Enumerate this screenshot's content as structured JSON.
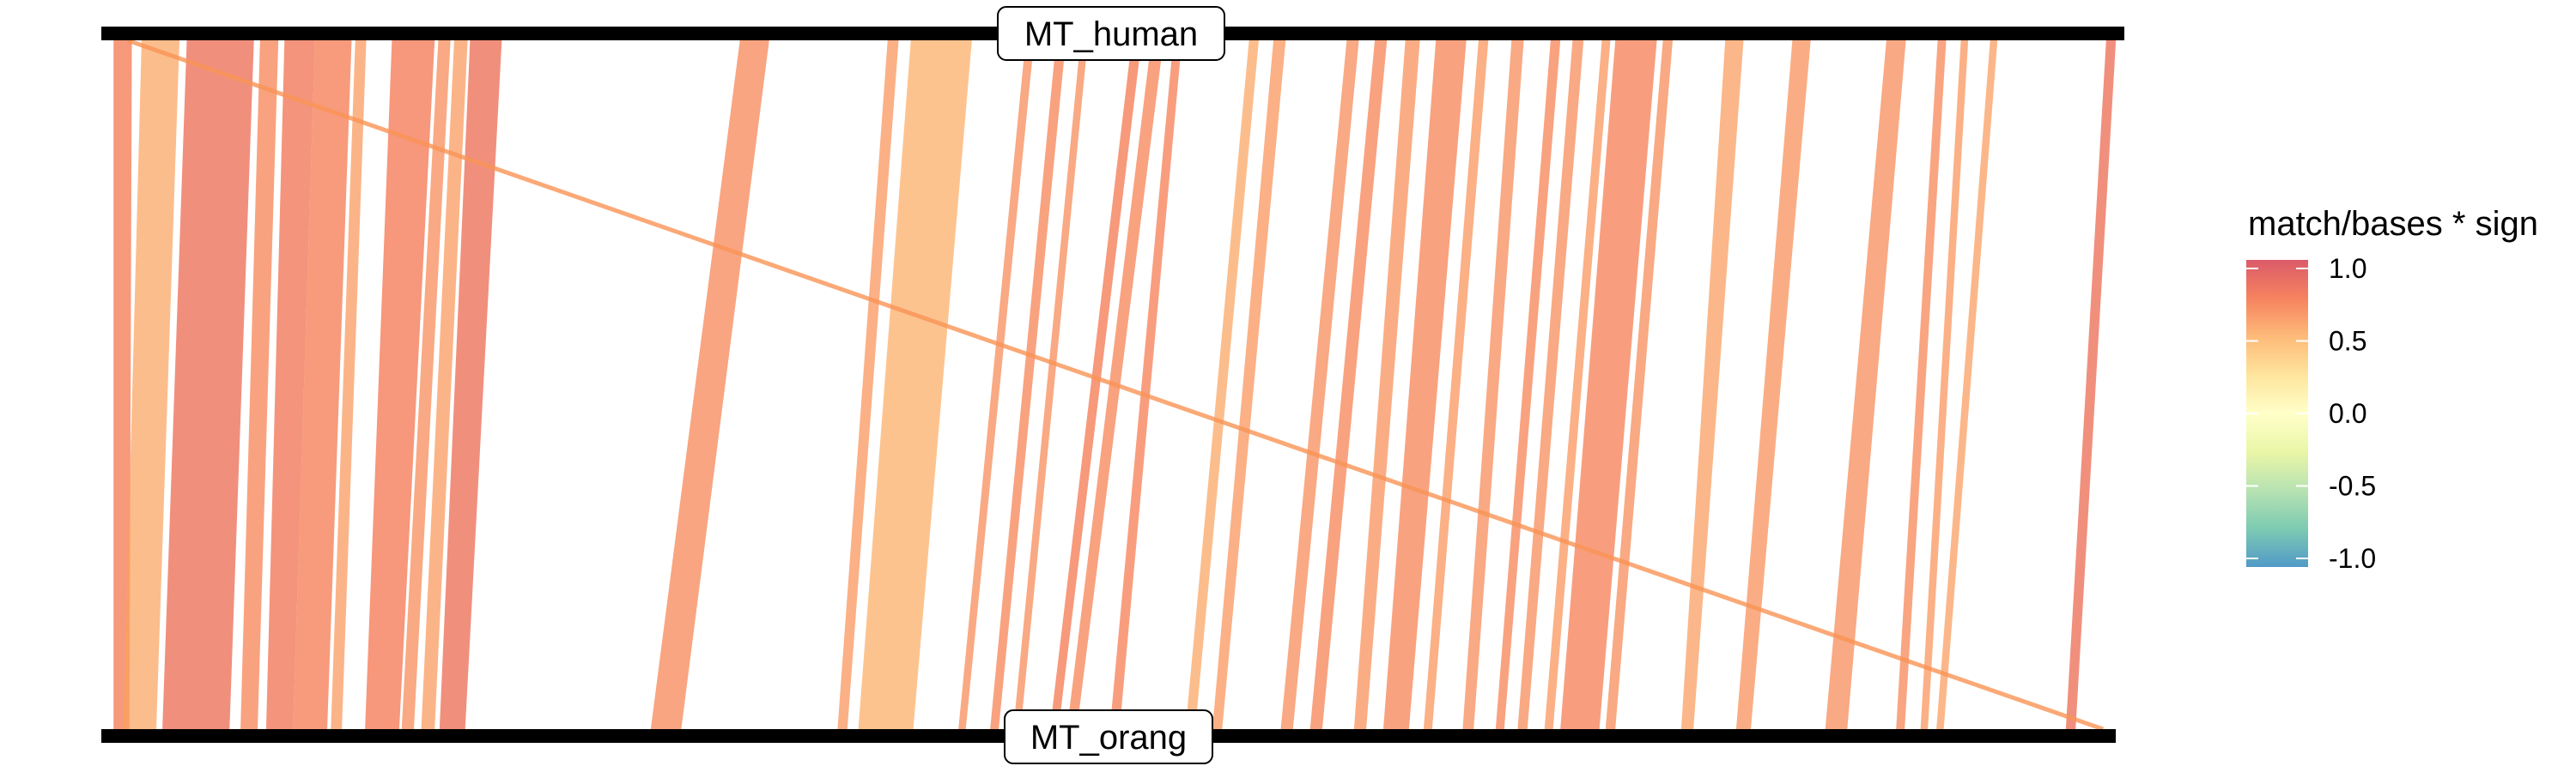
{
  "sequences": {
    "top": {
      "name": "MT_human",
      "length": 16569
    },
    "bottom": {
      "name": "MT_orang",
      "length": 16499
    }
  },
  "legend": {
    "title": "match/bases * sign",
    "ticks": [
      "1.0",
      "0.5",
      "0.0",
      "-0.5",
      "-1.0"
    ],
    "colors": [
      "#d53e4f",
      "#f46d43",
      "#fdae61",
      "#fee08b",
      "#ffffbf",
      "#e6f598",
      "#abdda4",
      "#66c2a5",
      "#3288bd"
    ]
  },
  "chart_data": {
    "type": "diagram",
    "description_free": true,
    "value_range": [
      -1.0,
      1.0
    ],
    "alignments": [
      {
        "t_start": 100,
        "t_end": 250,
        "q_start": 100,
        "q_end": 230,
        "value": 0.75
      },
      {
        "t_start": 330,
        "t_end": 640,
        "q_start": 180,
        "q_end": 450,
        "value": 0.55
      },
      {
        "t_start": 700,
        "t_end": 1250,
        "q_start": 500,
        "q_end": 1050,
        "value": 0.82
      },
      {
        "t_start": 1300,
        "t_end": 1450,
        "q_start": 1140,
        "q_end": 1280,
        "value": 0.7
      },
      {
        "t_start": 1500,
        "t_end": 1750,
        "q_start": 1350,
        "q_end": 1570,
        "value": 0.78
      },
      {
        "t_start": 1750,
        "t_end": 2050,
        "q_start": 1570,
        "q_end": 1850,
        "value": 0.74
      },
      {
        "t_start": 2080,
        "t_end": 2170,
        "q_start": 1880,
        "q_end": 1970,
        "value": 0.6
      },
      {
        "t_start": 2380,
        "t_end": 2730,
        "q_start": 2160,
        "q_end": 2440,
        "value": 0.76
      },
      {
        "t_start": 2760,
        "t_end": 2860,
        "q_start": 2460,
        "q_end": 2560,
        "value": 0.66
      },
      {
        "t_start": 2890,
        "t_end": 3000,
        "q_start": 2620,
        "q_end": 2730,
        "value": 0.6
      },
      {
        "t_start": 3020,
        "t_end": 3280,
        "q_start": 2770,
        "q_end": 2980,
        "value": 0.82
      },
      {
        "t_start": 5230,
        "t_end": 5470,
        "q_start": 4500,
        "q_end": 4750,
        "value": 0.68
      },
      {
        "t_start": 6440,
        "t_end": 6530,
        "q_start": 6030,
        "q_end": 6110,
        "value": 0.62
      },
      {
        "t_start": 6630,
        "t_end": 7130,
        "q_start": 6200,
        "q_end": 6650,
        "value": 0.52
      },
      {
        "t_start": 7570,
        "t_end": 7640,
        "q_start": 7020,
        "q_end": 7080,
        "value": 0.66
      },
      {
        "t_start": 7820,
        "t_end": 7900,
        "q_start": 7280,
        "q_end": 7350,
        "value": 0.7
      },
      {
        "t_start": 8020,
        "t_end": 8080,
        "q_start": 7470,
        "q_end": 7530,
        "value": 0.66
      },
      {
        "t_start": 8440,
        "t_end": 8520,
        "q_start": 7770,
        "q_end": 7840,
        "value": 0.75
      },
      {
        "t_start": 8600,
        "t_end": 8700,
        "q_start": 7910,
        "q_end": 7990,
        "value": 0.7
      },
      {
        "t_start": 8780,
        "t_end": 8850,
        "q_start": 8260,
        "q_end": 8340,
        "value": 0.72
      },
      {
        "t_start": 9400,
        "t_end": 9480,
        "q_start": 8880,
        "q_end": 8960,
        "value": 0.55
      },
      {
        "t_start": 9600,
        "t_end": 9700,
        "q_start": 9100,
        "q_end": 9180,
        "value": 0.62
      },
      {
        "t_start": 10200,
        "t_end": 10300,
        "q_start": 9660,
        "q_end": 9760,
        "value": 0.66
      },
      {
        "t_start": 10430,
        "t_end": 10530,
        "q_start": 9900,
        "q_end": 10000,
        "value": 0.7
      },
      {
        "t_start": 10680,
        "t_end": 10800,
        "q_start": 10260,
        "q_end": 10360,
        "value": 0.64
      },
      {
        "t_start": 10930,
        "t_end": 11180,
        "q_start": 10500,
        "q_end": 10710,
        "value": 0.7
      },
      {
        "t_start": 11280,
        "t_end": 11360,
        "q_start": 10830,
        "q_end": 10900,
        "value": 0.62
      },
      {
        "t_start": 11550,
        "t_end": 11650,
        "q_start": 11150,
        "q_end": 11240,
        "value": 0.66
      },
      {
        "t_start": 11870,
        "t_end": 11950,
        "q_start": 11420,
        "q_end": 11490,
        "value": 0.7
      },
      {
        "t_start": 12050,
        "t_end": 12140,
        "q_start": 11600,
        "q_end": 11680,
        "value": 0.66
      },
      {
        "t_start": 12290,
        "t_end": 12360,
        "q_start": 11820,
        "q_end": 11890,
        "value": 0.62
      },
      {
        "t_start": 12400,
        "t_end": 12740,
        "q_start": 11950,
        "q_end": 12270,
        "value": 0.72
      },
      {
        "t_start": 12790,
        "t_end": 12870,
        "q_start": 12320,
        "q_end": 12400,
        "value": 0.66
      },
      {
        "t_start": 13300,
        "t_end": 13450,
        "q_start": 12940,
        "q_end": 13040,
        "value": 0.58
      },
      {
        "t_start": 13850,
        "t_end": 14000,
        "q_start": 13390,
        "q_end": 13510,
        "value": 0.64
      },
      {
        "t_start": 14620,
        "t_end": 14780,
        "q_start": 14120,
        "q_end": 14300,
        "value": 0.66
      },
      {
        "t_start": 15040,
        "t_end": 15110,
        "q_start": 14700,
        "q_end": 14770,
        "value": 0.68
      },
      {
        "t_start": 15230,
        "t_end": 15290,
        "q_start": 14900,
        "q_end": 14960,
        "value": 0.62
      },
      {
        "t_start": 15470,
        "t_end": 15530,
        "q_start": 15030,
        "q_end": 15090,
        "value": 0.58
      },
      {
        "t_start": 16420,
        "t_end": 16500,
        "q_start": 16090,
        "q_end": 16170,
        "value": 0.82
      },
      {
        "t_start": 200,
        "t_end": 230,
        "q_start": 16380,
        "q_end": 16410,
        "value": 0.6
      }
    ]
  }
}
